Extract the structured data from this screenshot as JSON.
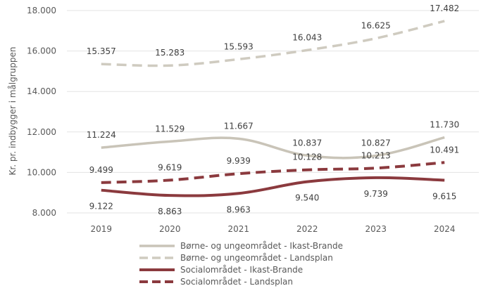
{
  "chart_data": {
    "type": "line",
    "title": "",
    "xlabel": "",
    "ylabel": "Kr. pr. indbygger i målgruppen",
    "categories": [
      "2019",
      "2020",
      "2021",
      "2022",
      "2023",
      "2024"
    ],
    "ylim": [
      8000,
      18000
    ],
    "yticks": [
      8000,
      10000,
      12000,
      14000,
      16000,
      18000
    ],
    "ytick_labels": [
      "8.000",
      "10.000",
      "12.000",
      "14.000",
      "16.000",
      "18.000"
    ],
    "grid": "horizontal",
    "legend_position": "bottom",
    "series": [
      {
        "name": "Børne- og ungeområdet - Ikast-Brande",
        "values": [
          11224,
          11529,
          11667,
          10837,
          10827,
          11730
        ],
        "labels": [
          "11.224",
          "11.529",
          "11.667",
          "10.837",
          "10.827",
          "11.730"
        ],
        "color": "#c9c4b8",
        "dash": "solid",
        "label_side": "above"
      },
      {
        "name": "Børne- og ungeområdet - Landsplan",
        "values": [
          15357,
          15283,
          15593,
          16043,
          16625,
          17482
        ],
        "labels": [
          "15.357",
          "15.283",
          "15.593",
          "16.043",
          "16.625",
          "17.482"
        ],
        "color": "#cfcbc0",
        "dash": "dashed",
        "label_side": "above"
      },
      {
        "name": "Socialområdet - Ikast-Brande",
        "values": [
          9122,
          8863,
          8963,
          9540,
          9739,
          9615
        ],
        "labels": [
          "9.122",
          "8.863",
          "8.963",
          "9.540",
          "9.739",
          "9.615"
        ],
        "color": "#8b3a3e",
        "dash": "solid",
        "label_side": "below"
      },
      {
        "name": "Socialområdet - Landsplan",
        "values": [
          9499,
          9619,
          9939,
          10128,
          10213,
          10491
        ],
        "labels": [
          "9.499",
          "9.619",
          "9.939",
          "10.128",
          "10.213",
          "10.491"
        ],
        "color": "#8b3a3e",
        "dash": "dashed",
        "label_side": "above"
      }
    ]
  }
}
